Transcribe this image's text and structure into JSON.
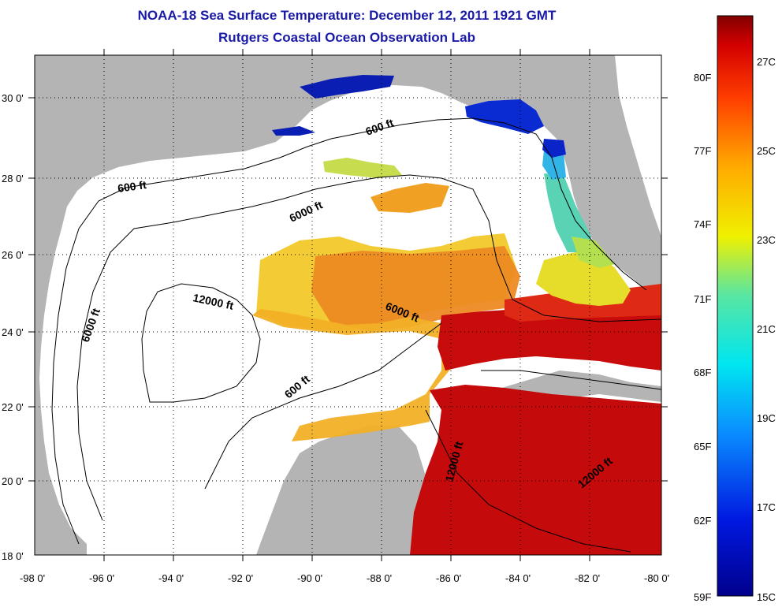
{
  "title": {
    "line1": "NOAA-18 Sea Surface Temperature:  December 12, 2011 1921 GMT",
    "line2": "Rutgers Coastal Ocean Observation Lab"
  },
  "map": {
    "lon_range": [
      -98,
      -80
    ],
    "lat_range": [
      18,
      31
    ],
    "lon_ticks": [
      "-98 0'",
      "-96 0'",
      "-94 0'",
      "-92 0'",
      "-90 0'",
      "-88 0'",
      "-86 0'",
      "-84 0'",
      "-82 0'",
      "-80 0'"
    ],
    "lat_ticks": [
      "18 0'",
      "20 0'",
      "22 0'",
      "24 0'",
      "26 0'",
      "28 0'",
      "30 0'"
    ],
    "grid": "dotted",
    "colors": {
      "land": "#b4b4b4",
      "no_data": "#ffffff",
      "warm_core": "#c40a0a",
      "orange": "#f29a1e",
      "yellow": "#f2d21e",
      "cyan": "#3ec8e8",
      "blue": "#0a28d2"
    },
    "contour_labels": [
      {
        "text": "600 ft"
      },
      {
        "text": "600 ft"
      },
      {
        "text": "6000 ft"
      },
      {
        "text": "6000 ft"
      },
      {
        "text": "12000 ft"
      },
      {
        "text": "6000 ft"
      },
      {
        "text": "600 ft"
      },
      {
        "text": "12000 ft"
      },
      {
        "text": "12000 ft"
      }
    ]
  },
  "colorbar": {
    "fahrenheit_labels": [
      "80F",
      "77F",
      "74F",
      "71F",
      "68F",
      "65F",
      "62F",
      "59F"
    ],
    "celsius_labels": [
      "27C",
      "25C",
      "23C",
      "21C",
      "19C",
      "17C",
      "15C"
    ]
  }
}
